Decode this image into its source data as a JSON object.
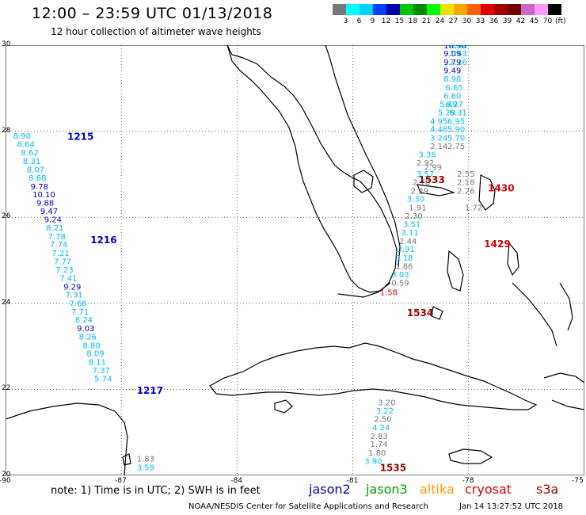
{
  "title": "12:00 – 23:59 UTC 01/13/2018",
  "subtitle": "12 hour collection of altimeter wave heights",
  "colorbar": {
    "colors": [
      "#777777",
      "#00ffff",
      "#00d2ff",
      "#0040ff",
      "#0000aa",
      "#00c800",
      "#008c00",
      "#00ff00",
      "#e6e600",
      "#ffa500",
      "#ff6000",
      "#e00000",
      "#a00000",
      "#700000",
      "#cc66cc",
      "#ff99ff",
      "#000000"
    ],
    "ticks": [
      "3",
      "6",
      "9",
      "12",
      "15",
      "18",
      "21",
      "24",
      "27",
      "30",
      "33",
      "36",
      "39",
      "42",
      "45",
      "70"
    ],
    "unit": "(ft)"
  },
  "axes": {
    "lat_labels": [
      "30",
      "28",
      "26",
      "24",
      "22",
      "20"
    ],
    "lon_labels": [
      "-90",
      "-87",
      "-84",
      "-81",
      "-78",
      "-75"
    ]
  },
  "note": "note:  1) Time is in UTC;  2) SWH is in feet",
  "legend": [
    {
      "label": "jason2",
      "color": "#0000cc"
    },
    {
      "label": "jason3",
      "color": "#00a000"
    },
    {
      "label": "altika",
      "color": "#ff9900"
    },
    {
      "label": "cryosat",
      "color": "#dd0000"
    },
    {
      "label": "s3a",
      "color": "#990000"
    }
  ],
  "credit": "NOAA/NESDIS Center for Satellite Applications and Research",
  "timestamp": "Jan 14 13:27:52 UTC 2018",
  "passes": [
    {
      "label": "1215",
      "color": "#0000cc",
      "lon": -88.4,
      "lat": 27.8
    },
    {
      "label": "1216",
      "color": "#0000cc",
      "lon": -87.8,
      "lat": 25.4
    },
    {
      "label": "1217",
      "color": "#0000cc",
      "lon": -86.6,
      "lat": 21.9
    },
    {
      "label": "1534",
      "color": "#990000",
      "lon": -79.6,
      "lat": 23.7
    },
    {
      "label": "1535",
      "color": "#990000",
      "lon": -80.3,
      "lat": 20.1
    },
    {
      "label": "1533",
      "color": "#990000",
      "lon": -79.3,
      "lat": 26.8
    },
    {
      "label": "1430",
      "color": "#dd0000",
      "lon": -77.5,
      "lat": 26.6
    },
    {
      "label": "1429",
      "color": "#dd0000",
      "lon": -77.6,
      "lat": 25.3
    }
  ],
  "observations": [
    {
      "v": "8.90",
      "c": "#00bbff",
      "lon": -89.8,
      "lat": 27.83
    },
    {
      "v": "8.64",
      "c": "#00bbff",
      "lon": -89.7,
      "lat": 27.63
    },
    {
      "v": "8.62",
      "c": "#00bbff",
      "lon": -89.6,
      "lat": 27.44
    },
    {
      "v": "8.31",
      "c": "#00bbff",
      "lon": -89.55,
      "lat": 27.24
    },
    {
      "v": "8.07",
      "c": "#00bbff",
      "lon": -89.45,
      "lat": 27.04
    },
    {
      "v": "8.68",
      "c": "#00bbff",
      "lon": -89.4,
      "lat": 26.85
    },
    {
      "v": "9.78",
      "c": "#0000cc",
      "lon": -89.35,
      "lat": 26.65
    },
    {
      "v": "10.10",
      "c": "#0000cc",
      "lon": -89.3,
      "lat": 26.46
    },
    {
      "v": "9.88",
      "c": "#0000cc",
      "lon": -89.2,
      "lat": 26.27
    },
    {
      "v": "9.47",
      "c": "#0000cc",
      "lon": -89.1,
      "lat": 26.08
    },
    {
      "v": "9.24",
      "c": "#0000cc",
      "lon": -89.0,
      "lat": 25.88
    },
    {
      "v": "8.21",
      "c": "#00bbff",
      "lon": -88.95,
      "lat": 25.69
    },
    {
      "v": "7.78",
      "c": "#00bbff",
      "lon": -88.9,
      "lat": 25.49
    },
    {
      "v": "7.74",
      "c": "#00bbff",
      "lon": -88.85,
      "lat": 25.3
    },
    {
      "v": "7.21",
      "c": "#00bbff",
      "lon": -88.8,
      "lat": 25.1
    },
    {
      "v": "7.77",
      "c": "#00bbff",
      "lon": -88.75,
      "lat": 24.91
    },
    {
      "v": "7.23",
      "c": "#00bbff",
      "lon": -88.7,
      "lat": 24.71
    },
    {
      "v": "7.41",
      "c": "#00bbff",
      "lon": -88.6,
      "lat": 24.52
    },
    {
      "v": "9.29",
      "c": "#0000cc",
      "lon": -88.5,
      "lat": 24.32
    },
    {
      "v": "7.31",
      "c": "#00bbff",
      "lon": -88.45,
      "lat": 24.13
    },
    {
      "v": "7.66",
      "c": "#00bbff",
      "lon": -88.35,
      "lat": 23.93
    },
    {
      "v": "7.71",
      "c": "#00bbff",
      "lon": -88.3,
      "lat": 23.74
    },
    {
      "v": "8.24",
      "c": "#00bbff",
      "lon": -88.2,
      "lat": 23.55
    },
    {
      "v": "9.03",
      "c": "#0000cc",
      "lon": -88.15,
      "lat": 23.35
    },
    {
      "v": "8.26",
      "c": "#00bbff",
      "lon": -88.1,
      "lat": 23.16
    },
    {
      "v": "8.80",
      "c": "#00bbff",
      "lon": -88.0,
      "lat": 22.96
    },
    {
      "v": "8.09",
      "c": "#00bbff",
      "lon": -87.9,
      "lat": 22.77
    },
    {
      "v": "8.11",
      "c": "#00bbff",
      "lon": -87.85,
      "lat": 22.57
    },
    {
      "v": "7.37",
      "c": "#00bbff",
      "lon": -87.75,
      "lat": 22.38
    },
    {
      "v": "5.74",
      "c": "#00bbff",
      "lon": -87.7,
      "lat": 22.18
    },
    {
      "v": "1.83",
      "c": "#777777",
      "lon": -86.6,
      "lat": 20.32
    },
    {
      "v": "3.59",
      "c": "#00bbff",
      "lon": -86.6,
      "lat": 20.12
    },
    {
      "v": "10.96",
      "c": "#0000cc",
      "lon": -78.65,
      "lat": 29.93
    },
    {
      "v": "9.09",
      "c": "#0000cc",
      "lon": -78.65,
      "lat": 29.74
    },
    {
      "v": "9.79",
      "c": "#0000cc",
      "lon": -78.65,
      "lat": 29.54
    },
    {
      "v": "9.49",
      "c": "#0000cc",
      "lon": -78.65,
      "lat": 29.35
    },
    {
      "v": "8.98",
      "c": "#00bbff",
      "lon": -78.65,
      "lat": 29.15
    },
    {
      "v": "6.96",
      "c": "#00bbff",
      "lon": -78.5,
      "lat": 29.93
    },
    {
      "v": "7.63",
      "c": "#00bbff",
      "lon": -78.5,
      "lat": 29.74
    },
    {
      "v": "7.26",
      "c": "#00bbff",
      "lon": -78.5,
      "lat": 29.54
    },
    {
      "v": "6.65",
      "c": "#00bbff",
      "lon": -78.6,
      "lat": 28.95
    },
    {
      "v": "6.60",
      "c": "#00bbff",
      "lon": -78.65,
      "lat": 28.76
    },
    {
      "v": "6.27",
      "c": "#00bbff",
      "lon": -78.6,
      "lat": 28.56
    },
    {
      "v": "5.49",
      "c": "#00bbff",
      "lon": -78.75,
      "lat": 28.56
    },
    {
      "v": "6.31",
      "c": "#00bbff",
      "lon": -78.5,
      "lat": 28.37
    },
    {
      "v": "5.29",
      "c": "#00bbff",
      "lon": -78.8,
      "lat": 28.37
    },
    {
      "v": "4.95",
      "c": "#00bbff",
      "lon": -79.0,
      "lat": 28.17
    },
    {
      "v": "6.95",
      "c": "#00bbff",
      "lon": -78.55,
      "lat": 28.17
    },
    {
      "v": "4.48",
      "c": "#00bbff",
      "lon": -79.0,
      "lat": 27.98
    },
    {
      "v": "5.90",
      "c": "#00bbff",
      "lon": -78.55,
      "lat": 27.98
    },
    {
      "v": "3.24",
      "c": "#00bbff",
      "lon": -79.0,
      "lat": 27.78
    },
    {
      "v": "5.70",
      "c": "#00bbff",
      "lon": -78.55,
      "lat": 27.78
    },
    {
      "v": "2.14",
      "c": "#777777",
      "lon": -79.0,
      "lat": 27.59
    },
    {
      "v": "2.75",
      "c": "#777777",
      "lon": -78.55,
      "lat": 27.59
    },
    {
      "v": "3.36",
      "c": "#00bbff",
      "lon": -79.3,
      "lat": 27.39
    },
    {
      "v": "2.92",
      "c": "#777777",
      "lon": -79.35,
      "lat": 27.2
    },
    {
      "v": "2.99",
      "c": "#777777",
      "lon": -79.15,
      "lat": 27.1
    },
    {
      "v": "3.57",
      "c": "#00bbff",
      "lon": -79.35,
      "lat": 26.94
    },
    {
      "v": "2.55",
      "c": "#777777",
      "lon": -78.3,
      "lat": 26.94
    },
    {
      "v": "2.78",
      "c": "#777777",
      "lon": -79.45,
      "lat": 26.75
    },
    {
      "v": "2.18",
      "c": "#777777",
      "lon": -78.3,
      "lat": 26.75
    },
    {
      "v": "2.29",
      "c": "#777777",
      "lon": -79.5,
      "lat": 26.55
    },
    {
      "v": "2.26",
      "c": "#777777",
      "lon": -78.3,
      "lat": 26.55
    },
    {
      "v": "3.30",
      "c": "#00bbff",
      "lon": -79.6,
      "lat": 26.36
    },
    {
      "v": "1.91",
      "c": "#777777",
      "lon": -79.55,
      "lat": 26.16
    },
    {
      "v": "1.72",
      "c": "#777777",
      "lon": -78.1,
      "lat": 26.16
    },
    {
      "v": "2.30",
      "c": "#777777",
      "lon": -79.65,
      "lat": 25.97
    },
    {
      "v": "3.51",
      "c": "#00bbff",
      "lon": -79.7,
      "lat": 25.77
    },
    {
      "v": "3.11",
      "c": "#00bbff",
      "lon": -79.75,
      "lat": 25.58
    },
    {
      "v": "2.44",
      "c": "#777777",
      "lon": -79.8,
      "lat": 25.38
    },
    {
      "v": "3.91",
      "c": "#00bbff",
      "lon": -79.85,
      "lat": 25.19
    },
    {
      "v": "3.18",
      "c": "#00bbff",
      "lon": -79.9,
      "lat": 24.99
    },
    {
      "v": "1.86",
      "c": "#777777",
      "lon": -79.9,
      "lat": 24.8
    },
    {
      "v": "3.03",
      "c": "#00bbff",
      "lon": -80.0,
      "lat": 24.6
    },
    {
      "v": "0.59",
      "c": "#777777",
      "lon": -80.0,
      "lat": 24.41
    },
    {
      "v": "1.58",
      "c": "#dd0000",
      "lon": -80.3,
      "lat": 24.19
    },
    {
      "v": "3.20",
      "c": "#777777",
      "lon": -80.35,
      "lat": 21.63
    },
    {
      "v": "3.22",
      "c": "#00bbff",
      "lon": -80.4,
      "lat": 21.44
    },
    {
      "v": "2.50",
      "c": "#777777",
      "lon": -80.45,
      "lat": 21.24
    },
    {
      "v": "4.24",
      "c": "#00bbff",
      "lon": -80.5,
      "lat": 21.05
    },
    {
      "v": "2.83",
      "c": "#777777",
      "lon": -80.55,
      "lat": 20.85
    },
    {
      "v": "1.74",
      "c": "#777777",
      "lon": -80.55,
      "lat": 20.66
    },
    {
      "v": "1.80",
      "c": "#777777",
      "lon": -80.6,
      "lat": 20.46
    },
    {
      "v": "3.90",
      "c": "#00bbff",
      "lon": -80.7,
      "lat": 20.27
    }
  ]
}
